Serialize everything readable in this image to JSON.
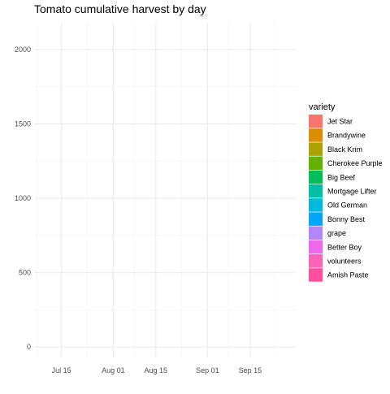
{
  "chart_data": {
    "type": "area",
    "title": "Tomato cumulative harvest by day",
    "xlabel": "",
    "ylabel": "",
    "x_ticks": [
      "Jul 15",
      "Aug 01",
      "Aug 15",
      "Sep 01",
      "Sep 15"
    ],
    "xlim": [
      "2020-07-06",
      "2020-09-30"
    ],
    "y_ticks": [
      0,
      500,
      1000,
      1500,
      2000
    ],
    "ylim": [
      -70,
      2180
    ],
    "grid": true,
    "legend": {
      "title": "variety",
      "position": "right",
      "entries": [
        {
          "name": "Jet Star",
          "color": "#F8766D"
        },
        {
          "name": "Brandywine",
          "color": "#DB8E00"
        },
        {
          "name": "Black Krim",
          "color": "#AEA200"
        },
        {
          "name": "Cherokee Purple",
          "color": "#64B200"
        },
        {
          "name": "Big Beef",
          "color": "#00BD5C"
        },
        {
          "name": "Mortgage Lifter",
          "color": "#00C1A7"
        },
        {
          "name": "Old German",
          "color": "#00BADE"
        },
        {
          "name": "Bonny Best",
          "color": "#00A6FF"
        },
        {
          "name": "grape",
          "color": "#B385FF"
        },
        {
          "name": "Better Boy",
          "color": "#EF67EB"
        },
        {
          "name": "volunteers",
          "color": "#FF63B6"
        },
        {
          "name": "Amish Paste",
          "color": "#FF4FA0"
        }
      ]
    },
    "series": []
  }
}
